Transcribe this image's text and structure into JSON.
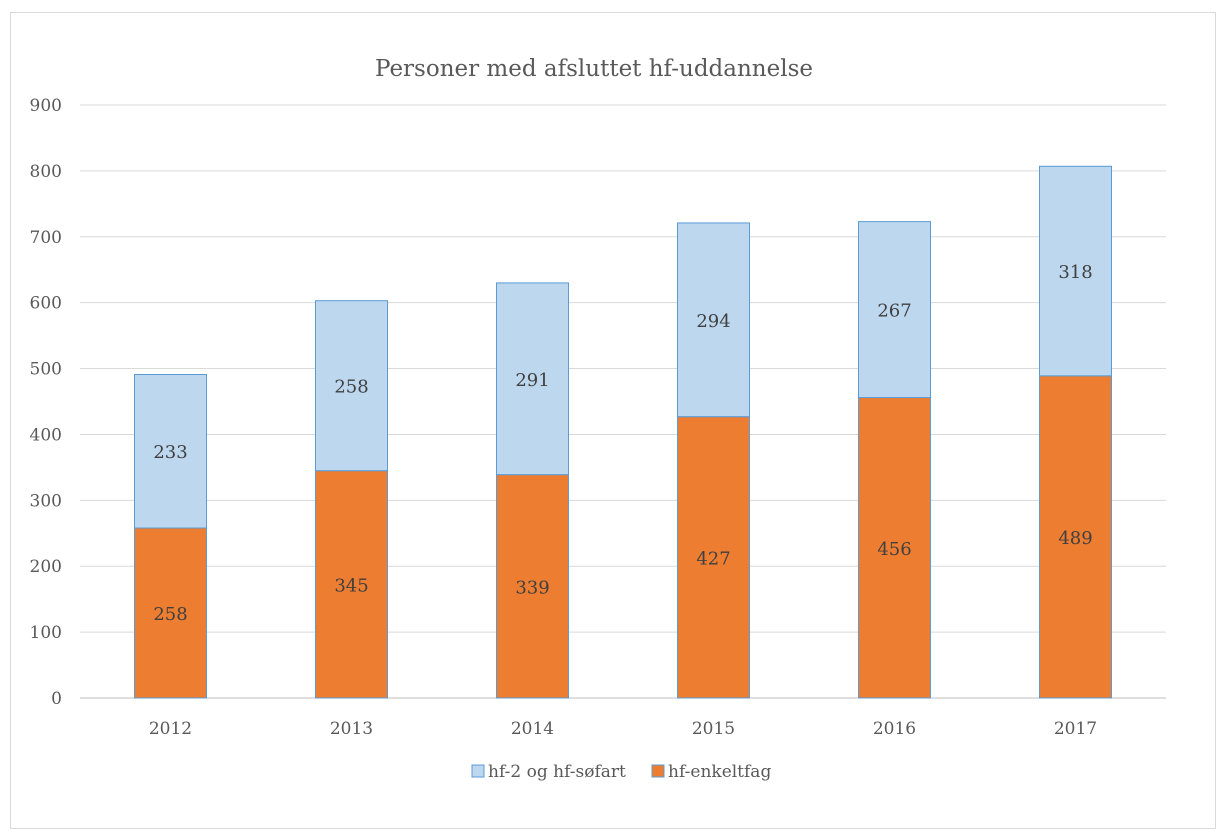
{
  "chart_data": {
    "type": "bar",
    "stacked": true,
    "title": "Personer med afsluttet hf-uddannelse",
    "xlabel": "",
    "ylabel": "",
    "categories": [
      "2012",
      "2013",
      "2014",
      "2015",
      "2016",
      "2017"
    ],
    "ylim": [
      0,
      900
    ],
    "yticks": [
      0,
      100,
      200,
      300,
      400,
      500,
      600,
      700,
      800,
      900
    ],
    "grid": true,
    "legend_position": "bottom",
    "series": [
      {
        "name": "hf-enkeltfag",
        "values": [
          258,
          345,
          339,
          427,
          456,
          489
        ],
        "color": "#ed7d31",
        "stroke": "#5b9bd5"
      },
      {
        "name": "hf-2 og hf-søfart",
        "values": [
          233,
          258,
          291,
          294,
          267,
          318
        ],
        "color": "#bdd7ee",
        "stroke": "#5b9bd5"
      }
    ],
    "legend_order": [
      1,
      0
    ]
  }
}
